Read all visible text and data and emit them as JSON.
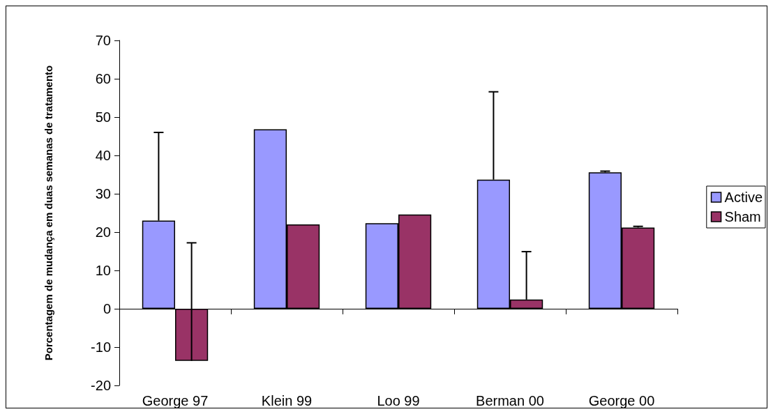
{
  "chart_data": {
    "type": "bar",
    "ylabel": "Porcentagem de mudança em duas semanas de tratamento",
    "categories": [
      "George 97",
      "Klein 99",
      "Loo 99",
      "Berman 00",
      "George 00"
    ],
    "series": [
      {
        "name": "Active",
        "color": "#9999ff",
        "values": [
          23.0,
          46.8,
          22.3,
          33.7,
          35.6
        ],
        "errors": [
          [
            23.0,
            46.0
          ],
          null,
          null,
          [
            33.7,
            56.6
          ],
          [
            35.6,
            35.9
          ]
        ]
      },
      {
        "name": "Sham",
        "color": "#993366",
        "values": [
          -13.6,
          22.0,
          24.6,
          2.4,
          21.2
        ],
        "errors": [
          [
            -13.6,
            17.2
          ],
          null,
          null,
          [
            2.4,
            14.9
          ],
          [
            21.2,
            21.5
          ]
        ]
      }
    ],
    "ylim": [
      -20,
      70
    ],
    "yticks": [
      -20,
      -10,
      0,
      10,
      20,
      30,
      40,
      50,
      60,
      70
    ],
    "legend": "right"
  }
}
